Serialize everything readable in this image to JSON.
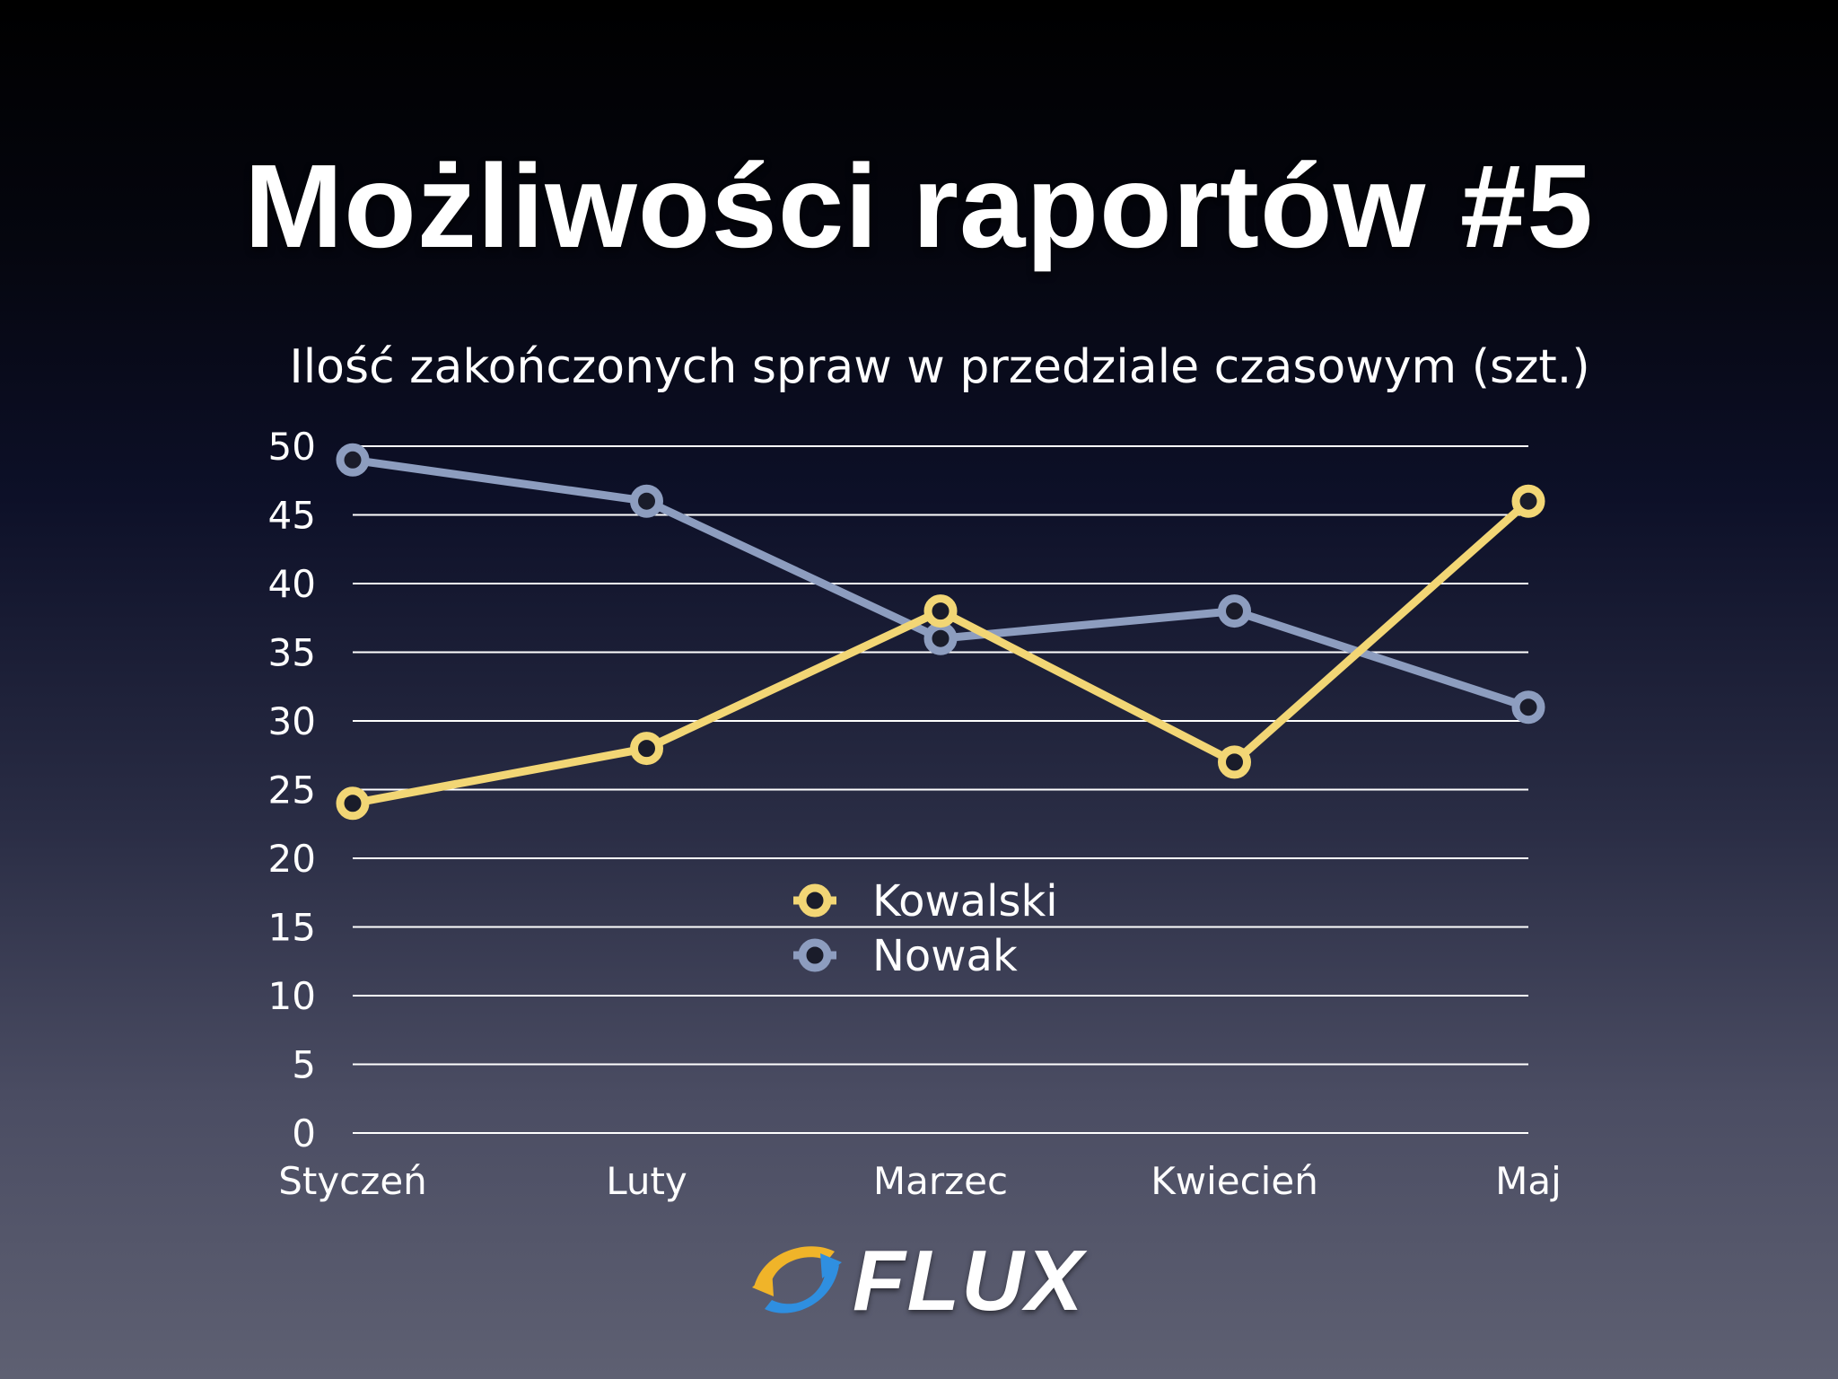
{
  "slide": {
    "title": "Możliwości raportów #5"
  },
  "colors": {
    "kowalski": "#f2d675",
    "nowak": "#8d9dbf",
    "gridline": "#ffffff",
    "text": "#ffffff"
  },
  "chart_data": {
    "type": "line",
    "title": "Ilość zakończonych spraw w przedziale czasowym (szt.)",
    "categories": [
      "Styczeń",
      "Luty",
      "Marzec",
      "Kwiecień",
      "Maj"
    ],
    "series": [
      {
        "name": "Kowalski",
        "values": [
          24,
          28,
          38,
          27,
          46
        ]
      },
      {
        "name": "Nowak",
        "values": [
          49,
          46,
          36,
          38,
          31
        ]
      }
    ],
    "yticks": [
      "0",
      "5",
      "10",
      "15",
      "20",
      "25",
      "30",
      "35",
      "40",
      "45",
      "50"
    ],
    "ylim": [
      0,
      50
    ],
    "grid": true,
    "legend_position": "center"
  },
  "logo": {
    "text": "FLUX"
  }
}
